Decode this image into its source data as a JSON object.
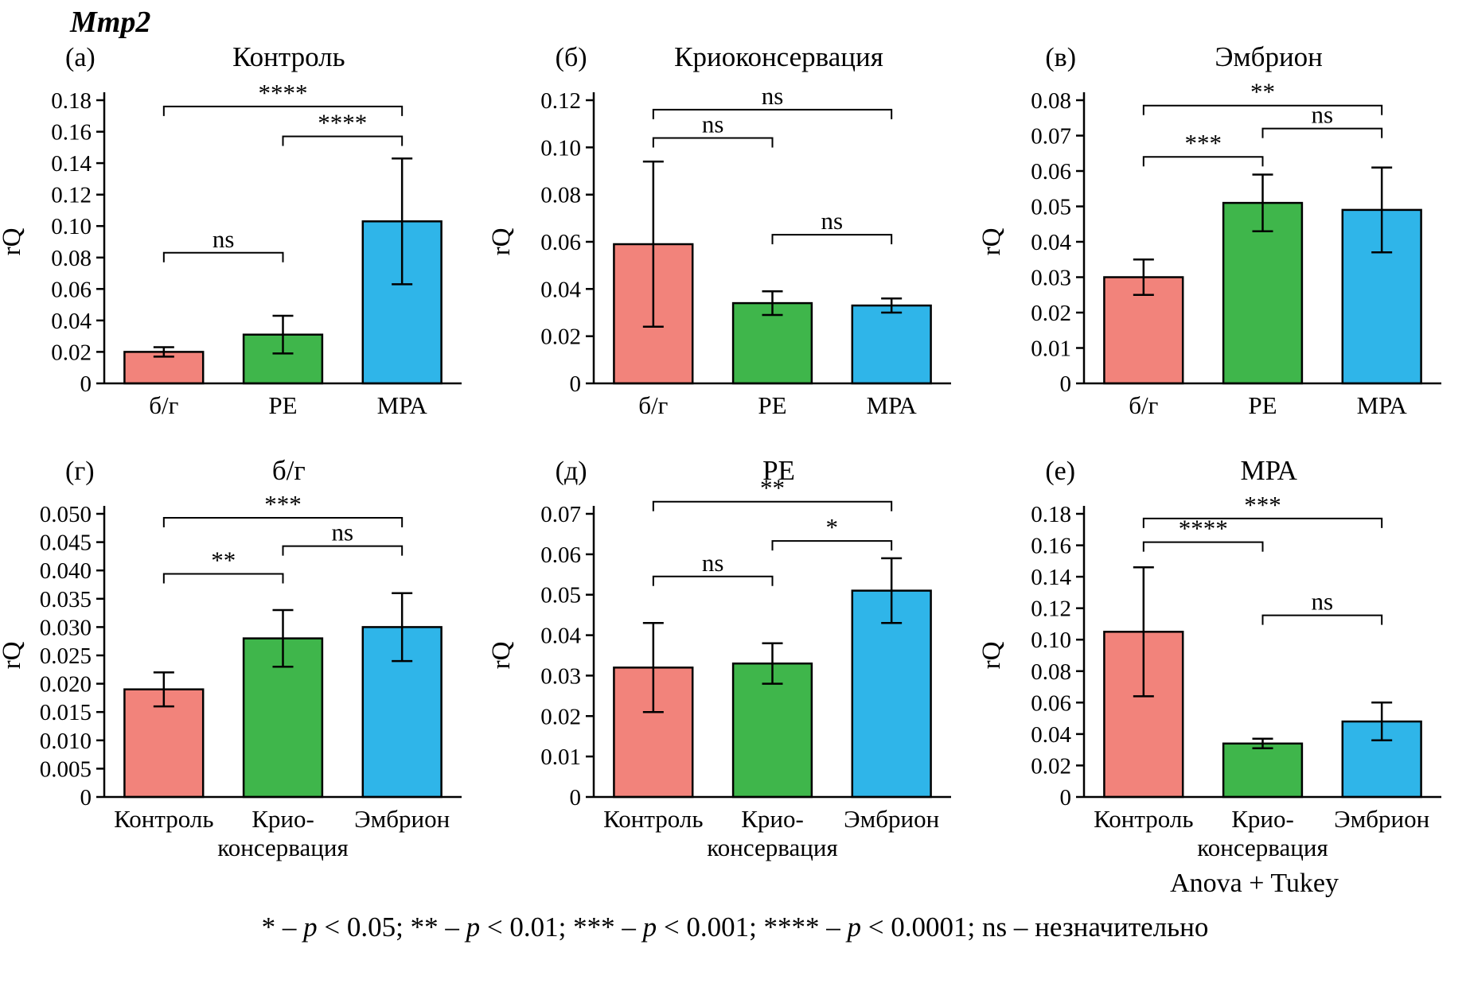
{
  "figure": {
    "title": "Mmp2"
  },
  "style": {
    "bar_colors": [
      "#F2837B",
      "#3FB64B",
      "#2FB5E9"
    ],
    "stroke": "#000000"
  },
  "footer": {
    "method": "Anova + Tukey",
    "legend_parts": [
      {
        "t": "* – ",
        "i": false
      },
      {
        "t": "p",
        "i": true
      },
      {
        "t": " < 0.05; ** – ",
        "i": false
      },
      {
        "t": "p",
        "i": true
      },
      {
        "t": " < 0.01; *** – ",
        "i": false
      },
      {
        "t": "p",
        "i": true
      },
      {
        "t": " < 0.001; **** – ",
        "i": false
      },
      {
        "t": "p",
        "i": true
      },
      {
        "t": " < 0.0001; ns – незначительно",
        "i": false
      }
    ]
  },
  "chart_data": [
    {
      "type": "bar",
      "panel_label": "(а)",
      "title": "Контроль",
      "ylabel": "rQ",
      "categories": [
        "б/г",
        "PE",
        "МРА"
      ],
      "values": [
        0.02,
        0.031,
        0.103
      ],
      "errors": [
        0.003,
        0.012,
        0.04
      ],
      "ylim": [
        0,
        0.18
      ],
      "ytick_step": 0.02,
      "ytick_decimals": 2,
      "significance": [
        {
          "pair": [
            0,
            1
          ],
          "label": "ns",
          "y": 0.083
        },
        {
          "pair": [
            1,
            2
          ],
          "label": "****",
          "y": 0.157
        },
        {
          "pair": [
            0,
            2
          ],
          "label": "****",
          "y": 0.176
        }
      ]
    },
    {
      "type": "bar",
      "panel_label": "(б)",
      "title": "Криоконсервация",
      "ylabel": "rQ",
      "categories": [
        "б/г",
        "PE",
        "МРА"
      ],
      "values": [
        0.059,
        0.034,
        0.033
      ],
      "errors": [
        0.035,
        0.005,
        0.003
      ],
      "ylim": [
        0,
        0.12
      ],
      "ytick_step": 0.02,
      "ytick_decimals": 2,
      "significance": [
        {
          "pair": [
            1,
            2
          ],
          "label": "ns",
          "y": 0.063
        },
        {
          "pair": [
            0,
            1
          ],
          "label": "ns",
          "y": 0.104
        },
        {
          "pair": [
            0,
            2
          ],
          "label": "ns",
          "y": 0.116
        }
      ]
    },
    {
      "type": "bar",
      "panel_label": "(в)",
      "title": "Эмбрион",
      "ylabel": "rQ",
      "categories": [
        "б/г",
        "PE",
        "МРА"
      ],
      "values": [
        0.03,
        0.051,
        0.049
      ],
      "errors": [
        0.005,
        0.008,
        0.012
      ],
      "ylim": [
        0,
        0.08
      ],
      "ytick_step": 0.01,
      "ytick_decimals": 2,
      "significance": [
        {
          "pair": [
            0,
            1
          ],
          "label": "***",
          "y": 0.064
        },
        {
          "pair": [
            1,
            2
          ],
          "label": "ns",
          "y": 0.072
        },
        {
          "pair": [
            0,
            2
          ],
          "label": "**",
          "y": 0.0785
        }
      ]
    },
    {
      "type": "bar",
      "panel_label": "(г)",
      "title": "б/г",
      "ylabel": "rQ",
      "categories": [
        "Контроль",
        "Крио-\nконсервация",
        "Эмбрион"
      ],
      "values": [
        0.019,
        0.028,
        0.03
      ],
      "errors": [
        0.003,
        0.005,
        0.006
      ],
      "ylim": [
        0,
        0.05
      ],
      "ytick_step": 0.005,
      "ytick_decimals": 3,
      "significance": [
        {
          "pair": [
            0,
            1
          ],
          "label": "**",
          "y": 0.0394
        },
        {
          "pair": [
            1,
            2
          ],
          "label": "ns",
          "y": 0.0443
        },
        {
          "pair": [
            0,
            2
          ],
          "label": "***",
          "y": 0.0493
        }
      ]
    },
    {
      "type": "bar",
      "panel_label": "(д)",
      "title": "PE",
      "ylabel": "rQ",
      "categories": [
        "Контроль",
        "Крио-\nконсервация",
        "Эмбрион"
      ],
      "values": [
        0.032,
        0.033,
        0.051
      ],
      "errors": [
        0.011,
        0.005,
        0.008
      ],
      "ylim": [
        0,
        0.07
      ],
      "ytick_step": 0.01,
      "ytick_decimals": 2,
      "significance": [
        {
          "pair": [
            0,
            1
          ],
          "label": "ns",
          "y": 0.0545
        },
        {
          "pair": [
            1,
            2
          ],
          "label": "*",
          "y": 0.0633
        },
        {
          "pair": [
            0,
            2
          ],
          "label": "**",
          "y": 0.073
        }
      ]
    },
    {
      "type": "bar",
      "panel_label": "(е)",
      "title": "МРА",
      "ylabel": "rQ",
      "categories": [
        "Контроль",
        "Крио-\nконсервация",
        "Эмбрион"
      ],
      "values": [
        0.105,
        0.034,
        0.048
      ],
      "errors": [
        0.041,
        0.003,
        0.012
      ],
      "ylim": [
        0,
        0.18
      ],
      "ytick_step": 0.02,
      "ytick_decimals": 2,
      "significance": [
        {
          "pair": [
            1,
            2
          ],
          "label": "ns",
          "y": 0.1155
        },
        {
          "pair": [
            0,
            1
          ],
          "label": "****",
          "y": 0.162
        },
        {
          "pair": [
            0,
            2
          ],
          "label": "***",
          "y": 0.177
        }
      ]
    }
  ]
}
